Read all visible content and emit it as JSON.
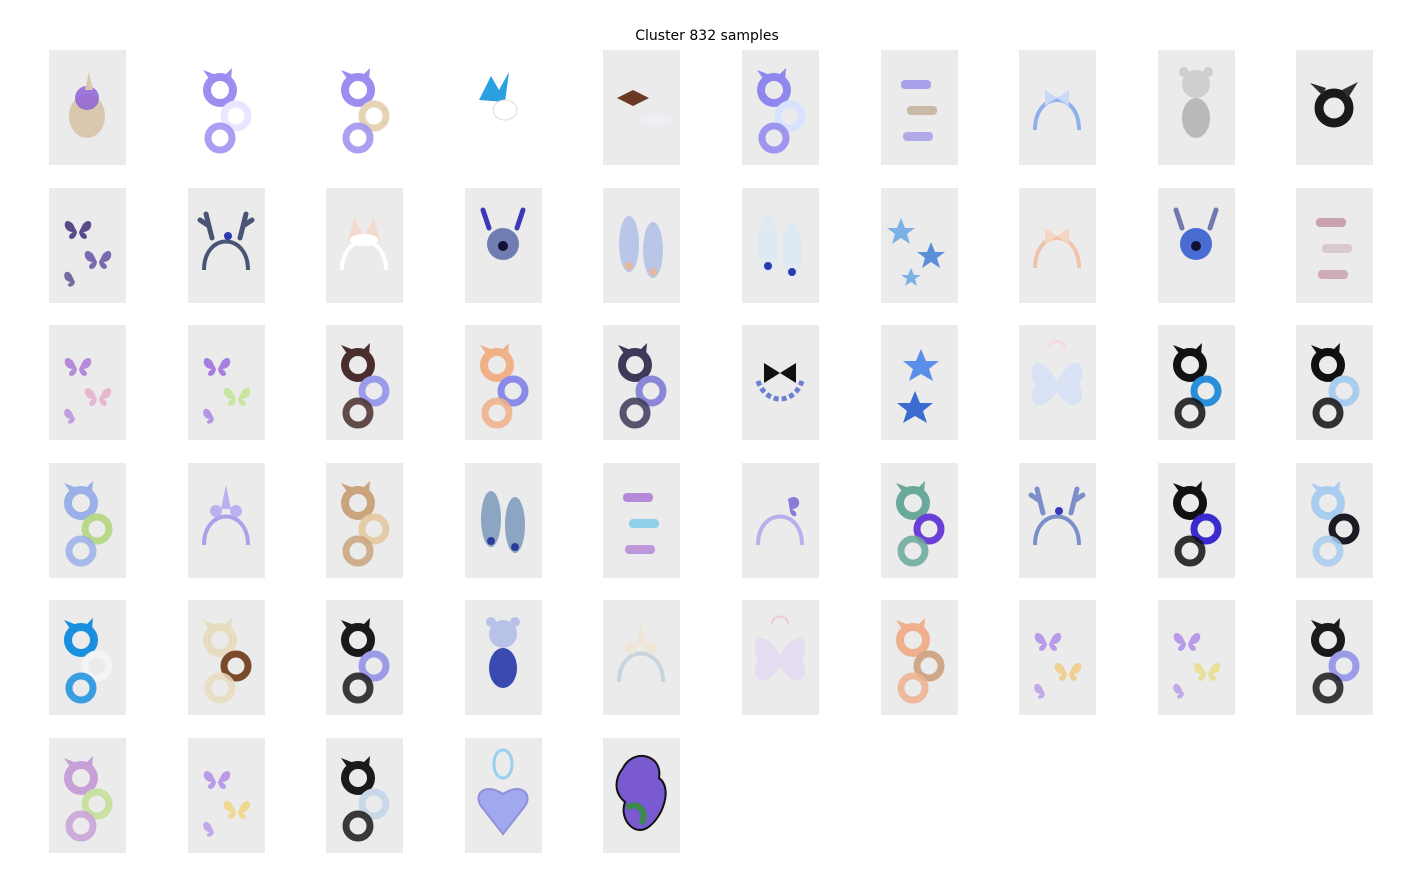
{
  "title": "Cluster 832 samples",
  "tiles": [
    {
      "icon": "unicorn-plush-icon",
      "colors": [
        "#8a5bd6",
        "#d9c7b0"
      ]
    },
    {
      "icon": "scrunchie-set-icon",
      "colors": [
        "#9b8ef0",
        "#e9e6ff"
      ],
      "wide": true
    },
    {
      "icon": "scrunchie-set-icon",
      "colors": [
        "#9b8ef0",
        "#e6d3b6"
      ],
      "wide": true
    },
    {
      "icon": "antler-clips-icon",
      "colors": [
        "#2aa0e0",
        "#ffffff"
      ],
      "wide": true
    },
    {
      "icon": "bow-clips-icon",
      "colors": [
        "#6b3a22",
        "#f0eef6"
      ]
    },
    {
      "icon": "scrunchie-set-icon",
      "colors": [
        "#8f86ee",
        "#d7e3ff"
      ]
    },
    {
      "icon": "hair-clips-icon",
      "colors": [
        "#a79fe8",
        "#c9b9a8"
      ]
    },
    {
      "icon": "bow-headband-icon",
      "colors": [
        "#8fb0ee",
        "#c9d8f7"
      ]
    },
    {
      "icon": "bear-plush-icon",
      "colors": [
        "#cfcfcf",
        "#b9b9b9"
      ]
    },
    {
      "icon": "black-scrunchie-icon",
      "colors": [
        "#1a1a1a",
        "#2e2e2e"
      ]
    },
    {
      "icon": "butterfly-clips-icon",
      "colors": [
        "#5a4a8a",
        "#7a68b0"
      ]
    },
    {
      "icon": "antler-headband-icon",
      "colors": [
        "#4a5575",
        "#2c3bb0"
      ]
    },
    {
      "icon": "cat-ear-headband-icon",
      "colors": [
        "#ffffff",
        "#f2dccf"
      ]
    },
    {
      "icon": "reindeer-clips-icon",
      "colors": [
        "#5b6aa8",
        "#3a3ab8"
      ]
    },
    {
      "icon": "slippers-icon",
      "colors": [
        "#b9c6e8",
        "#e3b8a0"
      ]
    },
    {
      "icon": "slippers-icon",
      "colors": [
        "#dfe9f2",
        "#2c3bb0"
      ]
    },
    {
      "icon": "starfish-garland-icon",
      "colors": [
        "#7cb1e6",
        "#5b8fd8"
      ]
    },
    {
      "icon": "bow-headband-icon",
      "colors": [
        "#f0c4aa",
        "#f5d6c3"
      ]
    },
    {
      "icon": "reindeer-pom-icon",
      "colors": [
        "#2b56cc",
        "#6f7bb0"
      ]
    },
    {
      "icon": "hair-clips-icon",
      "colors": [
        "#c9a1b0",
        "#d8c9d0"
      ]
    },
    {
      "icon": "butterfly-clips-icon",
      "colors": [
        "#b58ad8",
        "#e7b6d0"
      ]
    },
    {
      "icon": "butterfly-clips-icon",
      "colors": [
        "#a77ee0",
        "#c9e6a0"
      ]
    },
    {
      "icon": "scrunchie-set-icon",
      "colors": [
        "#4a2e2e",
        "#9b9bec"
      ]
    },
    {
      "icon": "scrunchie-set-icon",
      "colors": [
        "#f0b088",
        "#8a8ae8"
      ]
    },
    {
      "icon": "scrunchie-set-icon",
      "colors": [
        "#3c3a58",
        "#8a86d8"
      ]
    },
    {
      "icon": "bow-necklace-icon",
      "colors": [
        "#111111",
        "#6b7fd0"
      ]
    },
    {
      "icon": "star-clips-icon",
      "colors": [
        "#5b8ee8",
        "#3a6bd0"
      ]
    },
    {
      "icon": "fairy-wings-icon",
      "colors": [
        "#d8e2f4",
        "#f4d6e4"
      ]
    },
    {
      "icon": "scrunchie-set-icon",
      "colors": [
        "#111111",
        "#2a8fd8"
      ]
    },
    {
      "icon": "scrunchie-set-icon",
      "colors": [
        "#111111",
        "#a9cdee"
      ]
    },
    {
      "icon": "scrunchie-set-icon",
      "colors": [
        "#9bb0e8",
        "#b8d88a"
      ]
    },
    {
      "icon": "unicorn-headband-icon",
      "colors": [
        "#bcb0f0",
        "#a9a2e8"
      ]
    },
    {
      "icon": "scrunchie-set-icon",
      "colors": [
        "#c9a47c",
        "#e6cba8"
      ]
    },
    {
      "icon": "slippers-icon",
      "colors": [
        "#8ba5c2",
        "#2c3b9c"
      ]
    },
    {
      "icon": "hair-clips-icon",
      "colors": [
        "#b48ad8",
        "#8fd0e8"
      ]
    },
    {
      "icon": "butterfly-headband-icon",
      "colors": [
        "#8a7ad8",
        "#b7b0ec"
      ]
    },
    {
      "icon": "scrunchie-set-icon",
      "colors": [
        "#6aa89a",
        "#6a3fd8"
      ]
    },
    {
      "icon": "antler-headband-icon",
      "colors": [
        "#7c8fc8",
        "#3a3ab8"
      ]
    },
    {
      "icon": "scrunchie-set-icon",
      "colors": [
        "#111111",
        "#3a2bd0"
      ]
    },
    {
      "icon": "scrunchie-set-icon",
      "colors": [
        "#a9cdee",
        "#1a1a22"
      ]
    },
    {
      "icon": "scrunchie-set-icon",
      "colors": [
        "#1a8fe0",
        "#f4f4f4"
      ]
    },
    {
      "icon": "scrunchie-set-icon",
      "colors": [
        "#e8dcc0",
        "#7a4a2a"
      ]
    },
    {
      "icon": "scrunchie-set-icon",
      "colors": [
        "#1a1a1a",
        "#9b9be8"
      ]
    },
    {
      "icon": "bear-plush-icon",
      "colors": [
        "#b8c2e8",
        "#3a4ab0"
      ]
    },
    {
      "icon": "unicorn-headband-icon",
      "colors": [
        "#f0e6d8",
        "#c9d4dc"
      ]
    },
    {
      "icon": "fairy-wings-icon",
      "colors": [
        "#e4dcf0",
        "#f0c8dc"
      ]
    },
    {
      "icon": "scrunchie-set-icon",
      "colors": [
        "#f0b090",
        "#cfa88a"
      ]
    },
    {
      "icon": "butterfly-clips-icon",
      "colors": [
        "#b89ae8",
        "#f0d090"
      ]
    },
    {
      "icon": "butterfly-clips-icon",
      "colors": [
        "#b89ae8",
        "#e8e098"
      ]
    },
    {
      "icon": "scrunchie-set-icon",
      "colors": [
        "#1a1a1a",
        "#9b9be8"
      ]
    },
    {
      "icon": "scrunchie-set-icon",
      "colors": [
        "#c8a0d8",
        "#c8e0a0"
      ]
    },
    {
      "icon": "butterfly-clips-icon",
      "colors": [
        "#b89ae8",
        "#f0d890"
      ]
    },
    {
      "icon": "scrunchie-set-icon",
      "colors": [
        "#1a1a1a",
        "#c9d8e8"
      ]
    },
    {
      "icon": "heart-shaker-ornament-icon",
      "colors": [
        "#9ad0f0",
        "#a0a8f0"
      ]
    },
    {
      "icon": "dragon-patch-icon",
      "colors": [
        "#7a5ad0",
        "#3a8a4a"
      ]
    }
  ]
}
